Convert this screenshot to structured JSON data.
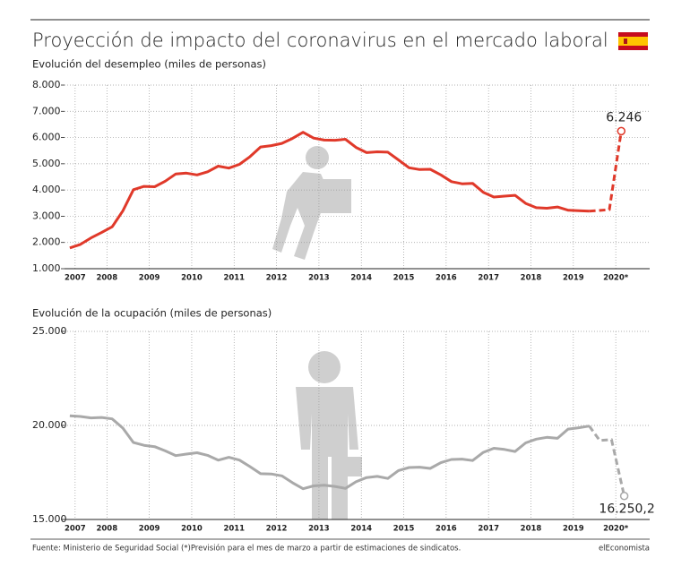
{
  "title": "Proyección de impacto del coronavirus en el mercado laboral",
  "source": "Fuente: Ministerio de Seguridad Social (*)Previsión para el mes de marzo a partir de estimaciones de sindicatos.",
  "brand": "elEconomista",
  "chart_data": [
    {
      "type": "line",
      "subtitle": "Evolución del desempleo (miles de personas)",
      "xlim": [
        2007.5,
        2021.3
      ],
      "xticks": [
        {
          "value": 2007.75,
          "label": "2007"
        },
        {
          "value": 2008.5,
          "label": "2008"
        },
        {
          "value": 2009.5,
          "label": "2009"
        },
        {
          "value": 2010.5,
          "label": "2010"
        },
        {
          "value": 2011.5,
          "label": "2011"
        },
        {
          "value": 2012.5,
          "label": "2012"
        },
        {
          "value": 2013.5,
          "label": "2013"
        },
        {
          "value": 2014.5,
          "label": "2014"
        },
        {
          "value": 2015.5,
          "label": "2015"
        },
        {
          "value": 2016.5,
          "label": "2016"
        },
        {
          "value": 2017.5,
          "label": "2017"
        },
        {
          "value": 2018.5,
          "label": "2018"
        },
        {
          "value": 2019.5,
          "label": "2019"
        },
        {
          "value": 2020.5,
          "label": "2020*"
        }
      ],
      "ylim": [
        1000,
        8000
      ],
      "yticks": [
        {
          "value": 1000,
          "label": "1.000"
        },
        {
          "value": 2000,
          "label": "2.000"
        },
        {
          "value": 3000,
          "label": "3.000"
        },
        {
          "value": 4000,
          "label": "4.000"
        },
        {
          "value": 5000,
          "label": "5.000"
        },
        {
          "value": 6000,
          "label": "6.000"
        },
        {
          "value": 7000,
          "label": "7.000"
        },
        {
          "value": 8000,
          "label": "8.000"
        }
      ],
      "grid": true,
      "series": [
        {
          "color": "#e0392a",
          "dashed": false,
          "x": [
            2007.625,
            2007.875,
            2008.125,
            2008.375,
            2008.625,
            2008.875,
            2009.125,
            2009.375,
            2009.625,
            2009.875,
            2010.125,
            2010.375,
            2010.625,
            2010.875,
            2011.125,
            2011.375,
            2011.625,
            2011.875,
            2012.125,
            2012.375,
            2012.625,
            2012.875,
            2013.125,
            2013.375,
            2013.625,
            2013.875,
            2014.125,
            2014.375,
            2014.625,
            2014.875,
            2015.125,
            2015.375,
            2015.625,
            2015.875,
            2016.125,
            2016.375,
            2016.625,
            2016.875,
            2017.125,
            2017.375,
            2017.625,
            2017.875,
            2018.125,
            2018.375,
            2018.625,
            2018.875,
            2019.125,
            2019.375,
            2019.625,
            2019.875
          ],
          "values": [
            1791,
            1927,
            2174,
            2381,
            2598,
            3207,
            4010,
            4137,
            4123,
            4335,
            4612,
            4645,
            4574,
            4696,
            4910,
            4834,
            4978,
            5273,
            5639,
            5693,
            5778,
            5965,
            6202,
            5977,
            5904,
            5896,
            5933,
            5622,
            5427,
            5457,
            5444,
            5149,
            4850,
            4779,
            4791,
            4574,
            4320,
            4237,
            4255,
            3914,
            3731,
            3766,
            3796,
            3490,
            3326,
            3304,
            3354,
            3230,
            3214,
            3191
          ]
        },
        {
          "color": "#e0392a",
          "dashed": true,
          "x": [
            2019.875,
            2020.35,
            2020.63
          ],
          "values": [
            3191,
            3250,
            6246
          ],
          "value_labels": [
            null,
            null,
            "6.246"
          ]
        }
      ]
    },
    {
      "type": "line",
      "subtitle": "Evolución de la ocupación (miles de personas)",
      "xlim": [
        2007.5,
        2021.3
      ],
      "xticks": [
        {
          "value": 2007.75,
          "label": "2007"
        },
        {
          "value": 2008.5,
          "label": "2008"
        },
        {
          "value": 2009.5,
          "label": "2009"
        },
        {
          "value": 2010.5,
          "label": "2010"
        },
        {
          "value": 2011.5,
          "label": "2011"
        },
        {
          "value": 2012.5,
          "label": "2012"
        },
        {
          "value": 2013.5,
          "label": "2013"
        },
        {
          "value": 2014.5,
          "label": "2014"
        },
        {
          "value": 2015.5,
          "label": "2015"
        },
        {
          "value": 2016.5,
          "label": "2016"
        },
        {
          "value": 2017.5,
          "label": "2017"
        },
        {
          "value": 2018.5,
          "label": "2018"
        },
        {
          "value": 2019.5,
          "label": "2019"
        },
        {
          "value": 2020.5,
          "label": "2020*"
        }
      ],
      "ylim": [
        15000,
        25000
      ],
      "yticks": [
        {
          "value": 15000,
          "label": "15.000"
        },
        {
          "value": 20000,
          "label": "20.000"
        },
        {
          "value": 25000,
          "label": "25.000"
        }
      ],
      "grid": true,
      "series": [
        {
          "color": "#a9a9a9",
          "dashed": false,
          "x": [
            2007.625,
            2007.875,
            2008.125,
            2008.375,
            2008.625,
            2008.875,
            2009.125,
            2009.375,
            2009.625,
            2009.875,
            2010.125,
            2010.375,
            2010.625,
            2010.875,
            2011.125,
            2011.375,
            2011.625,
            2011.875,
            2012.125,
            2012.375,
            2012.625,
            2012.875,
            2013.125,
            2013.375,
            2013.625,
            2013.875,
            2014.125,
            2014.375,
            2014.625,
            2014.875,
            2015.125,
            2015.375,
            2015.625,
            2015.875,
            2016.125,
            2016.375,
            2016.625,
            2016.875,
            2017.125,
            2017.375,
            2017.625,
            2017.875,
            2018.125,
            2018.375,
            2018.625,
            2018.875,
            2019.125,
            2019.375,
            2019.625,
            2019.875
          ],
          "values": [
            20510,
            20476,
            20402,
            20425,
            20346,
            19856,
            19090,
            18945,
            18870,
            18646,
            18394,
            18477,
            18547,
            18408,
            18151,
            18303,
            18156,
            17808,
            17433,
            17417,
            17320,
            16957,
            16634,
            16784,
            16823,
            16758,
            16651,
            17005,
            17229,
            17292,
            17183,
            17598,
            17762,
            17781,
            17712,
            18018,
            18191,
            18209,
            18133,
            18569,
            18785,
            18724,
            18613,
            19072,
            19271,
            19366,
            19314,
            19805,
            19875,
            19967
          ]
        },
        {
          "color": "#a9a9a9",
          "dashed": true,
          "x": [
            2019.875,
            2020.12,
            2020.4,
            2020.7
          ],
          "values": [
            19967,
            19200,
            19250,
            16250.2
          ],
          "value_labels": [
            null,
            null,
            null,
            "16.250,2"
          ]
        }
      ]
    }
  ]
}
